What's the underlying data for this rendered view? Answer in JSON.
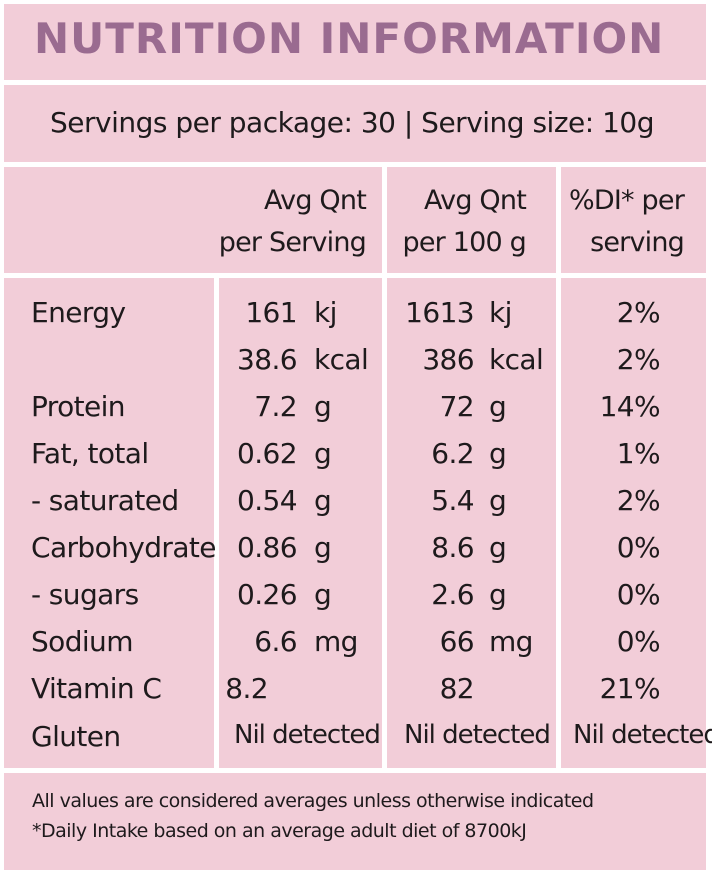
{
  "title": "NUTRITION INFORMATION",
  "serving_line": "Servings per package: 30 | Serving size: 10g",
  "columns": {
    "per_serving": [
      "Avg Qnt",
      "per Serving"
    ],
    "per_100g": [
      "Avg Qnt",
      "per 100 g"
    ],
    "di": [
      "%DI* per",
      "serving"
    ]
  },
  "rows": [
    {
      "label": "Energy",
      "v1": "161",
      "u1": "kj",
      "v2": "1613",
      "u2": "kj",
      "di": "2%"
    },
    {
      "label": "",
      "v1": "38.6",
      "u1": "kcal",
      "v2": "386",
      "u2": "kcal",
      "di": "2%"
    },
    {
      "label": "Protein",
      "v1": "7.2",
      "u1": "g",
      "v2": "72",
      "u2": "g",
      "di": "14%"
    },
    {
      "label": "Fat, total",
      "v1": "0.62",
      "u1": "g",
      "v2": "6.2",
      "u2": "g",
      "di": "1%"
    },
    {
      "label": "- saturated",
      "v1": "0.54",
      "u1": "g",
      "v2": "5.4",
      "u2": "g",
      "di": "2%"
    },
    {
      "label": "Carbohydrate",
      "v1": "0.86",
      "u1": "g",
      "v2": "8.6",
      "u2": "g",
      "di": "0%"
    },
    {
      "label": "- sugars",
      "v1": "0.26",
      "u1": "g",
      "v2": "2.6",
      "u2": "g",
      "di": "0%"
    },
    {
      "label": "Sodium",
      "v1": "6.6",
      "u1": "mg",
      "v2": "66",
      "u2": "mg",
      "di": "0%"
    },
    {
      "label": "Vitamin C",
      "v1": "8.2",
      "u1": "",
      "v2": "82",
      "u2": "",
      "di": "21%"
    }
  ],
  "gluten": {
    "label": "Gluten",
    "v1": "Nil detected",
    "v2": "Nil detected",
    "di": "Nil detected"
  },
  "footnotes": [
    "All values are considered averages unless otherwise indicated",
    "*Daily Intake based on an average adult diet of 8700kJ"
  ],
  "colors": {
    "background": "#f2cdd8",
    "title": "#9a6b90",
    "text": "#1e1a1c",
    "border": "#ffffff"
  }
}
